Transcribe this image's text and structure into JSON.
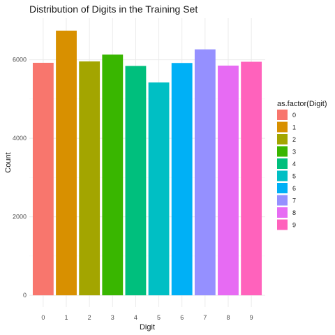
{
  "chart_data": {
    "type": "bar",
    "title": "Distribution of Digits in the Training Set",
    "xlabel": "Digit",
    "ylabel": "Count",
    "categories": [
      "0",
      "1",
      "2",
      "3",
      "4",
      "5",
      "6",
      "7",
      "8",
      "9"
    ],
    "values": [
      5923,
      6742,
      5958,
      6131,
      5842,
      5421,
      5918,
      6265,
      5851,
      5949
    ],
    "ylim": [
      0,
      7000
    ],
    "yticks": [
      0,
      2000,
      4000,
      6000
    ],
    "grid": true,
    "legend": {
      "title": "as.factor(Digit)",
      "placement": "right",
      "entries": [
        "0",
        "1",
        "2",
        "3",
        "4",
        "5",
        "6",
        "7",
        "8",
        "9"
      ]
    },
    "colors": [
      "#F8766D",
      "#D89000",
      "#A3A500",
      "#39B600",
      "#00BF7D",
      "#00BFC4",
      "#00B0F6",
      "#9590FF",
      "#E76BF3",
      "#FF62BC"
    ]
  }
}
